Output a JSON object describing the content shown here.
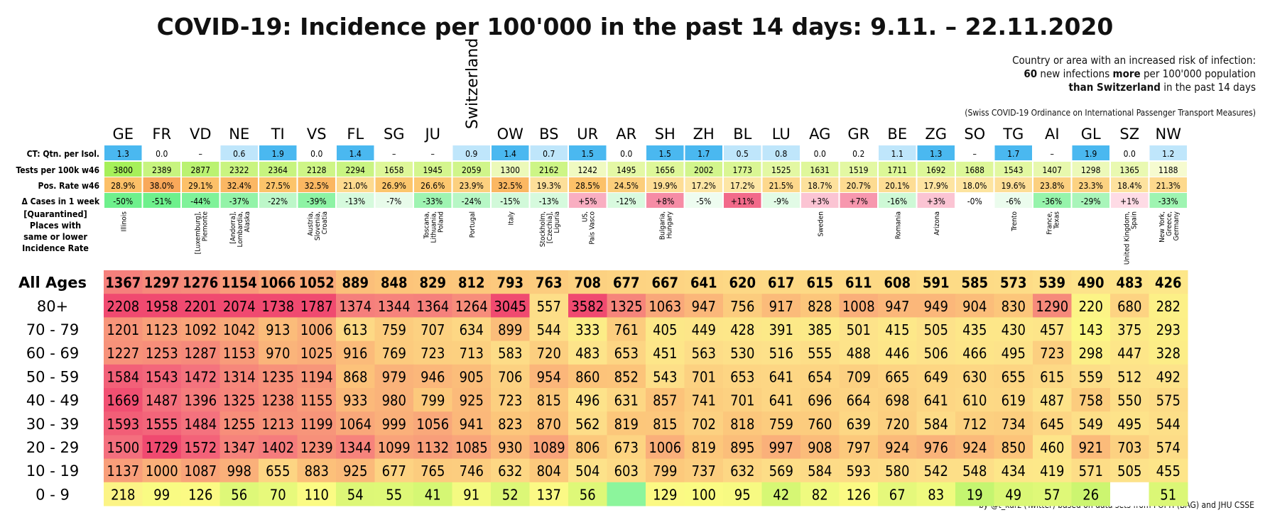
{
  "title": "COVID-19:  Incidence per 100'000 in the past 14 days:  9.11. – 22.11.2020",
  "note": {
    "line1": "Country or area with an increased risk of infection:",
    "line2_bold": "60",
    "line2_rest": " new infections ",
    "line2_bold2": "more",
    "line2_tail": " per 100'000 population",
    "line3_bold": "than Switzerland",
    "line3_rest": " in the past 14 days",
    "ordinance": "(Swiss COVID-19 Ordinance on International Passenger Transport Measures)"
  },
  "credit": "by @t_kurz (Twitter) based on data sets from FOPH (BAG) and JHU CSSE",
  "colors": {
    "blue_dark": "#4ab8f0",
    "blue_light": "#bfe6fb",
    "green": "#8cf59c",
    "yellow_green": "#d8f56a",
    "orange": "#fcc46a",
    "pink": "#f26a8a",
    "red_max": "#f0466e",
    "yellow": "#fbfb84"
  },
  "chart_data": {
    "type": "heatmap",
    "columns": [
      "GE",
      "FR",
      "VD",
      "NE",
      "TI",
      "VS",
      "FL",
      "SG",
      "JU",
      "Switzerland",
      "OW",
      "BS",
      "UR",
      "AR",
      "SH",
      "ZH",
      "BL",
      "LU",
      "AG",
      "GR",
      "BE",
      "ZG",
      "SO",
      "TG",
      "AI",
      "GL",
      "SZ",
      "NW"
    ],
    "info_rows": [
      {
        "label": "CT: Qtn. per Isol.",
        "values": [
          "1.3",
          "0.0",
          "–",
          "0.6",
          "1.9",
          "0.0",
          "1.4",
          "–",
          "–",
          "0.9",
          "1.4",
          "0.7",
          "1.5",
          "0.0",
          "1.5",
          "1.7",
          "0.5",
          "0.8",
          "0.0",
          "0.2",
          "1.1",
          "1.3",
          "–",
          "1.7",
          "–",
          "1.9",
          "0.0",
          "1.2"
        ]
      },
      {
        "label": "Tests per 100k w46",
        "values": [
          "3800",
          "2389",
          "2877",
          "2322",
          "2364",
          "2128",
          "2294",
          "1658",
          "1945",
          "2059",
          "1300",
          "2162",
          "1242",
          "1495",
          "1656",
          "2002",
          "1773",
          "1525",
          "1631",
          "1519",
          "1711",
          "1692",
          "1688",
          "1543",
          "1407",
          "1298",
          "1365",
          "1188"
        ]
      },
      {
        "label": "Pos. Rate w46",
        "values": [
          "28.9%",
          "38.0%",
          "29.1%",
          "32.4%",
          "27.5%",
          "32.5%",
          "21.0%",
          "26.9%",
          "26.6%",
          "23.9%",
          "32.5%",
          "19.3%",
          "28.5%",
          "24.5%",
          "19.9%",
          "17.2%",
          "17.2%",
          "21.5%",
          "18.7%",
          "20.7%",
          "20.1%",
          "17.9%",
          "18.0%",
          "19.6%",
          "23.8%",
          "23.3%",
          "18.4%",
          "21.3%"
        ]
      },
      {
        "label": "Δ Cases in 1 week",
        "values": [
          "-50%",
          "-51%",
          "-44%",
          "-37%",
          "-22%",
          "-39%",
          "-13%",
          "-7%",
          "-33%",
          "-24%",
          "-15%",
          "-13%",
          "+5%",
          "-12%",
          "+8%",
          "-5%",
          "+11%",
          "-9%",
          "+3%",
          "+7%",
          "-16%",
          "+3%",
          "-0%",
          "-6%",
          "-36%",
          "-29%",
          "+1%",
          "-33%"
        ]
      }
    ],
    "places_label": [
      "[Quarantined]",
      "Places with",
      "same or lower",
      "Incidence Rate"
    ],
    "places": [
      "Illinois",
      "",
      "[Luxemburg], Piemonte",
      "[Andorra], Lombardia, Alaska",
      "",
      "Austria, Slovenia, Croatia",
      "",
      "",
      "Toscana, Lithuania, Poland",
      "Portugal",
      "Italy",
      "Stockholm, [Czechia], Liguria",
      "US, Pais Vasco",
      "",
      "Bulgaria, Hungary",
      "",
      "",
      "",
      "Sweden",
      "",
      "Romania",
      "Arizona",
      "",
      "Trento",
      "France, Texas",
      "",
      "United Kingdom, Spain",
      "New York, Greece, Germany"
    ],
    "age_groups": [
      "All Ages",
      "80+",
      "70 - 79",
      "60 - 69",
      "50 - 59",
      "40 - 49",
      "30 - 39",
      "20 - 29",
      "10 - 19",
      "0 - 9"
    ],
    "values": [
      [
        1367,
        1297,
        1276,
        1154,
        1066,
        1052,
        889,
        848,
        829,
        812,
        793,
        763,
        708,
        677,
        667,
        641,
        620,
        617,
        615,
        611,
        608,
        591,
        585,
        573,
        539,
        490,
        483,
        426
      ],
      [
        2208,
        1958,
        2201,
        2074,
        1738,
        1787,
        1374,
        1344,
        1364,
        1264,
        3045,
        557,
        3582,
        1325,
        1063,
        947,
        756,
        917,
        828,
        1008,
        947,
        949,
        904,
        830,
        1290,
        220,
        680,
        282
      ],
      [
        1201,
        1123,
        1092,
        1042,
        913,
        1006,
        613,
        759,
        707,
        634,
        899,
        544,
        333,
        761,
        405,
        449,
        428,
        391,
        385,
        501,
        415,
        505,
        435,
        430,
        457,
        143,
        375,
        293
      ],
      [
        1227,
        1253,
        1287,
        1153,
        970,
        1025,
        916,
        769,
        723,
        713,
        583,
        720,
        483,
        653,
        451,
        563,
        530,
        516,
        555,
        488,
        446,
        506,
        466,
        495,
        723,
        298,
        447,
        328
      ],
      [
        1584,
        1543,
        1472,
        1314,
        1235,
        1194,
        868,
        979,
        946,
        905,
        706,
        954,
        860,
        852,
        543,
        701,
        653,
        641,
        654,
        709,
        665,
        649,
        630,
        655,
        615,
        559,
        512,
        492
      ],
      [
        1669,
        1487,
        1396,
        1325,
        1238,
        1155,
        933,
        980,
        799,
        925,
        723,
        815,
        496,
        631,
        857,
        741,
        701,
        641,
        696,
        664,
        698,
        641,
        610,
        619,
        487,
        758,
        550,
        575
      ],
      [
        1593,
        1555,
        1484,
        1255,
        1213,
        1199,
        1064,
        999,
        1056,
        941,
        823,
        870,
        562,
        819,
        815,
        702,
        818,
        759,
        760,
        639,
        720,
        584,
        712,
        734,
        645,
        549,
        495,
        544
      ],
      [
        1500,
        1729,
        1572,
        1347,
        1402,
        1239,
        1344,
        1099,
        1132,
        1085,
        930,
        1089,
        806,
        673,
        1006,
        819,
        895,
        997,
        908,
        797,
        924,
        976,
        924,
        850,
        460,
        921,
        703,
        574
      ],
      [
        1137,
        1000,
        1087,
        998,
        655,
        883,
        925,
        677,
        765,
        746,
        632,
        804,
        504,
        603,
        799,
        737,
        632,
        569,
        584,
        593,
        580,
        542,
        548,
        434,
        419,
        571,
        505,
        455
      ],
      [
        218,
        99,
        126,
        56,
        70,
        110,
        54,
        55,
        41,
        91,
        52,
        137,
        56,
        null,
        129,
        100,
        95,
        42,
        82,
        126,
        67,
        83,
        19,
        49,
        57,
        26,
        null,
        51
      ]
    ]
  }
}
